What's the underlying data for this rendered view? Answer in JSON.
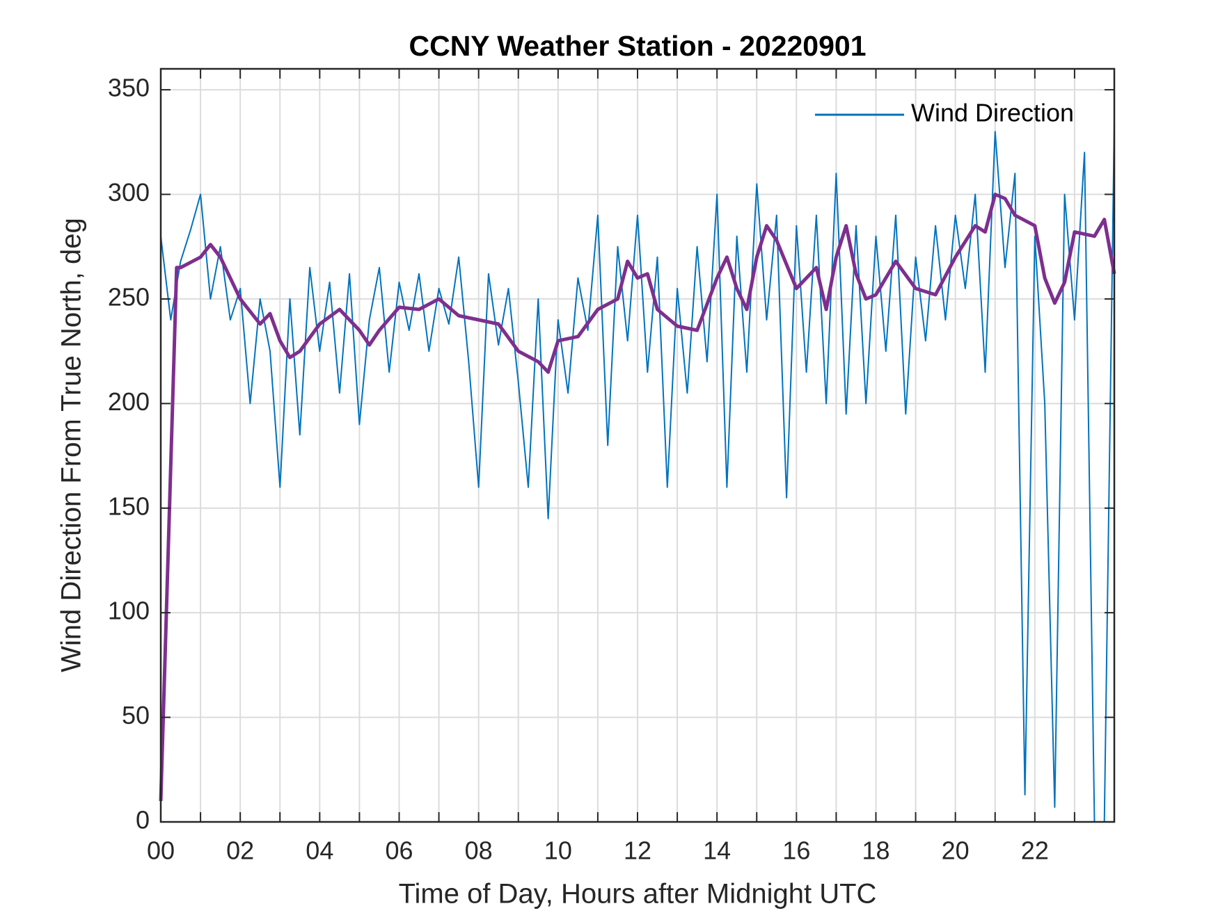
{
  "chart_data": {
    "type": "line",
    "title": "CCNY Weather Station - 20220901",
    "x_label": "Time of Day, Hours after Midnight UTC",
    "y_label": "Wind Direction From True North, deg",
    "xlim": [
      0,
      24
    ],
    "xticks": [
      {
        "value": 0,
        "label": "00"
      },
      {
        "value": 2,
        "label": "02"
      },
      {
        "value": 4,
        "label": "04"
      },
      {
        "value": 6,
        "label": "06"
      },
      {
        "value": 8,
        "label": "08"
      },
      {
        "value": 10,
        "label": "10"
      },
      {
        "value": 12,
        "label": "12"
      },
      {
        "value": 14,
        "label": "14"
      },
      {
        "value": 16,
        "label": "16"
      },
      {
        "value": 18,
        "label": "18"
      },
      {
        "value": 20,
        "label": "20"
      },
      {
        "value": 22,
        "label": "22"
      }
    ],
    "xminor_ticks": [
      1,
      3,
      5,
      7,
      9,
      11,
      13,
      15,
      17,
      19,
      21,
      23
    ],
    "ylim": [
      0,
      360
    ],
    "yticks": [
      0,
      50,
      100,
      150,
      200,
      250,
      300,
      350
    ],
    "grid": true,
    "legend": "upper right",
    "series": [
      {
        "name": "Wind Direction",
        "color": "#0072bd",
        "x": [
          0,
          0.25,
          0.5,
          0.75,
          1,
          1.25,
          1.5,
          1.75,
          2,
          2.25,
          2.5,
          2.75,
          3,
          3.25,
          3.5,
          3.75,
          4,
          4.25,
          4.5,
          4.75,
          5,
          5.25,
          5.5,
          5.75,
          6,
          6.25,
          6.5,
          6.75,
          7,
          7.25,
          7.5,
          7.75,
          8,
          8.25,
          8.5,
          8.75,
          9,
          9.25,
          9.5,
          9.75,
          10,
          10.25,
          10.5,
          10.75,
          11,
          11.25,
          11.5,
          11.75,
          12,
          12.25,
          12.5,
          12.75,
          13,
          13.25,
          13.5,
          13.75,
          14,
          14.25,
          14.5,
          14.75,
          15,
          15.25,
          15.5,
          15.75,
          16,
          16.25,
          16.5,
          16.75,
          17,
          17.25,
          17.5,
          17.75,
          18,
          18.25,
          18.5,
          18.75,
          19,
          19.25,
          19.5,
          19.75,
          20,
          20.25,
          20.5,
          20.75,
          21,
          21.25,
          21.5,
          21.75,
          22,
          22.25,
          22.5,
          22.75,
          23,
          23.25,
          23.5,
          23.75,
          24
        ],
        "values": [
          280,
          240,
          268,
          283,
          300,
          250,
          275,
          240,
          255,
          200,
          250,
          225,
          160,
          250,
          185,
          265,
          225,
          258,
          205,
          262,
          190,
          240,
          265,
          215,
          258,
          235,
          262,
          225,
          255,
          238,
          270,
          220,
          160,
          262,
          228,
          255,
          210,
          160,
          250,
          145,
          240,
          205,
          260,
          235,
          290,
          180,
          275,
          230,
          290,
          215,
          270,
          160,
          255,
          205,
          275,
          220,
          300,
          160,
          280,
          215,
          305,
          240,
          290,
          155,
          285,
          215,
          290,
          200,
          310,
          195,
          285,
          200,
          280,
          225,
          290,
          195,
          270,
          230,
          285,
          240,
          290,
          255,
          300,
          215,
          330,
          265,
          310,
          13,
          280,
          200,
          7,
          300,
          240,
          320,
          0,
          0,
          335
        ]
      },
      {
        "color": "#7e2f8e",
        "x": [
          0,
          0.4,
          0.5,
          1,
          1.25,
          1.5,
          2,
          2.5,
          2.75,
          3,
          3.25,
          3.5,
          4,
          4.5,
          5,
          5.25,
          5.5,
          6,
          6.5,
          7,
          7.5,
          8,
          8.5,
          9,
          9.5,
          9.75,
          10,
          10.5,
          11,
          11.5,
          11.75,
          12,
          12.25,
          12.5,
          13,
          13.5,
          14,
          14.25,
          14.5,
          14.75,
          15,
          15.25,
          15.5,
          16,
          16.5,
          16.75,
          17,
          17.25,
          17.5,
          17.75,
          18,
          18.5,
          19,
          19.5,
          20,
          20.5,
          20.75,
          21,
          21.25,
          21.5,
          22,
          22.25,
          22.5,
          22.75,
          23,
          23.5,
          23.75,
          24
        ],
        "values": [
          10,
          265,
          265,
          270,
          276,
          270,
          250,
          238,
          243,
          230,
          222,
          225,
          238,
          245,
          235,
          228,
          235,
          246,
          245,
          250,
          242,
          240,
          238,
          225,
          220,
          215,
          230,
          232,
          245,
          250,
          268,
          260,
          262,
          245,
          237,
          235,
          260,
          270,
          255,
          245,
          270,
          285,
          278,
          255,
          265,
          245,
          270,
          285,
          262,
          250,
          252,
          268,
          255,
          252,
          270,
          285,
          282,
          300,
          298,
          290,
          285,
          260,
          248,
          258,
          282,
          280,
          288,
          262
        ]
      }
    ]
  }
}
